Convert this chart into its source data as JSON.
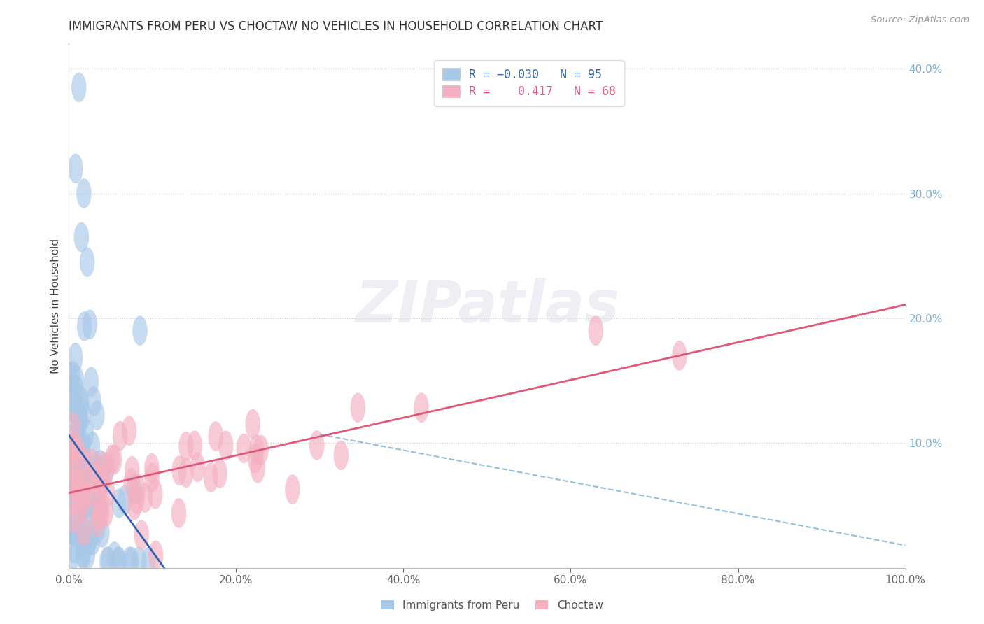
{
  "title": "IMMIGRANTS FROM PERU VS CHOCTAW NO VEHICLES IN HOUSEHOLD CORRELATION CHART",
  "source_text": "Source: ZipAtlas.com",
  "ylabel": "No Vehicles in Household",
  "xlim": [
    0.0,
    1.0
  ],
  "ylim": [
    0.0,
    0.42
  ],
  "x_ticks": [
    0.0,
    0.2,
    0.4,
    0.6,
    0.8,
    1.0
  ],
  "x_tick_labels": [
    "0.0%",
    "20.0%",
    "40.0%",
    "60.0%",
    "80.0%",
    "100.0%"
  ],
  "y_ticks_right": [
    0.1,
    0.2,
    0.3,
    0.4
  ],
  "y_tick_labels_right": [
    "10.0%",
    "20.0%",
    "30.0%",
    "40.0%"
  ],
  "blue_color": "#a8c8e8",
  "pink_color": "#f4b0c0",
  "blue_line_color": "#3060b0",
  "pink_line_color": "#e05878",
  "dashed_line_color": "#90c0e0",
  "peru_R": -0.03,
  "peru_N": 95,
  "choctaw_R": 0.417,
  "choctaw_N": 68,
  "background_color": "#ffffff",
  "grid_color": "#cccccc"
}
